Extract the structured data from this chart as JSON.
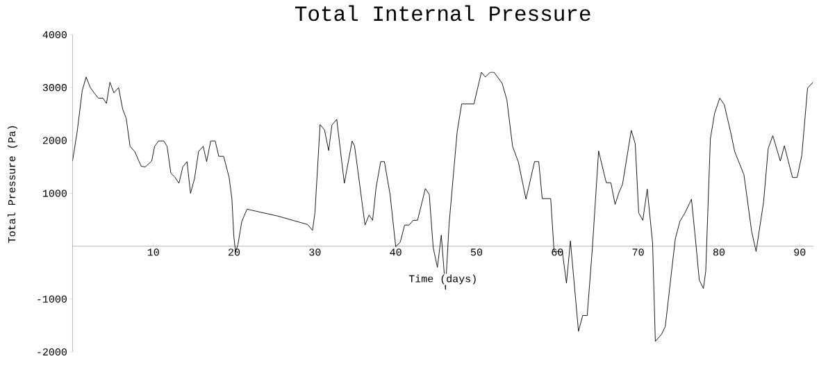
{
  "chart_data": {
    "type": "line",
    "title": "Total Internal Pressure",
    "xlabel": "Time (days)",
    "ylabel": "Total Pressure (Pa)",
    "color": "#000000",
    "xlim": [
      0,
      91.7
    ],
    "ylim": [
      -2000,
      4000
    ],
    "xticks": [
      10,
      20,
      30,
      40,
      50,
      60,
      70,
      80,
      90
    ],
    "yticks": [
      -2000,
      -1000,
      1000,
      2000,
      3000,
      4000
    ],
    "x": [
      0,
      0.57,
      1.2,
      1.68,
      2.2,
      2.77,
      3.2,
      3.77,
      4.2,
      4.63,
      5.12,
      5.7,
      6.21,
      6.64,
      7.12,
      7.7,
      8.5,
      9.0,
      9.8,
      10.16,
      10.65,
      11.3,
      11.7,
      12.17,
      12.65,
      13.17,
      13.65,
      14.17,
      14.6,
      15.1,
      15.6,
      16.17,
      16.6,
      17.1,
      17.66,
      18.1,
      18.7,
      19.38,
      19.73,
      19.96,
      20.18,
      20.47,
      20.95,
      21.6,
      25.4,
      29.1,
      29.7,
      30.0,
      30.64,
      31.18,
      31.7,
      32.1,
      32.7,
      33.64,
      34.6,
      34.9,
      35.4,
      36.2,
      36.7,
      37.14,
      37.57,
      38.14,
      38.6,
      39.3,
      40.0,
      40.57,
      41.1,
      41.66,
      42.15,
      42.7,
      43.67,
      44.15,
      44.64,
      45.16,
      45.64,
      46.16,
      46.6,
      47.6,
      48.16,
      49.68,
      50.6,
      51.1,
      51.68,
      52.17,
      53.17,
      53.75,
      54.46,
      55.18,
      56.12,
      57.18,
      57.7,
      58.13,
      59.18,
      59.6,
      60.62,
      61.13,
      61.62,
      62.62,
      63.14,
      63.7,
      64.34,
      65.11,
      66.06,
      66.63,
      67.15,
      67.64,
      68.07,
      69.15,
      69.64,
      70.07,
      70.58,
      71.13,
      71.79,
      72.13,
      72.88,
      73.36,
      74.6,
      75.17,
      75.8,
      76.6,
      77.09,
      77.57,
      78.08,
      78.37,
      78.94,
      79.46,
      80.1,
      80.66,
      81.52,
      81.95,
      83.1,
      84.05,
      84.6,
      85.53,
      86.1,
      86.67,
      87.6,
      88.1,
      89.1,
      89.68,
      90.26,
      90.97,
      91.63
    ],
    "values": [
      1610,
      2160,
      2940,
      3200,
      3000,
      2880,
      2800,
      2800,
      2700,
      3100,
      2900,
      3000,
      2590,
      2420,
      1890,
      1790,
      1510,
      1500,
      1610,
      1890,
      1990,
      1990,
      1890,
      1380,
      1310,
      1190,
      1500,
      1600,
      1000,
      1280,
      1790,
      1890,
      1600,
      1990,
      1990,
      1700,
      1700,
      1300,
      890,
      190,
      -110,
      30,
      470,
      700,
      570,
      410,
      300,
      630,
      2300,
      2200,
      1810,
      2290,
      2400,
      1190,
      1990,
      1900,
      1330,
      400,
      590,
      490,
      1110,
      1600,
      1600,
      980,
      -10,
      80,
      400,
      400,
      490,
      490,
      1090,
      980,
      -30,
      -400,
      210,
      -820,
      410,
      2160,
      2690,
      2690,
      3290,
      3200,
      3290,
      3290,
      3080,
      2770,
      1890,
      1590,
      890,
      1600,
      1600,
      900,
      900,
      -100,
      -100,
      -700,
      100,
      -1610,
      -1310,
      -1310,
      -30,
      1800,
      1200,
      1200,
      790,
      1020,
      1170,
      2190,
      1940,
      630,
      490,
      1080,
      60,
      -1800,
      -1670,
      -1520,
      140,
      470,
      630,
      890,
      140,
      -640,
      -800,
      -470,
      2030,
      2510,
      2800,
      2680,
      2110,
      1790,
      1350,
      280,
      -100,
      840,
      1850,
      2090,
      1610,
      1900,
      1300,
      1300,
      1720,
      2990,
      3100
    ]
  }
}
